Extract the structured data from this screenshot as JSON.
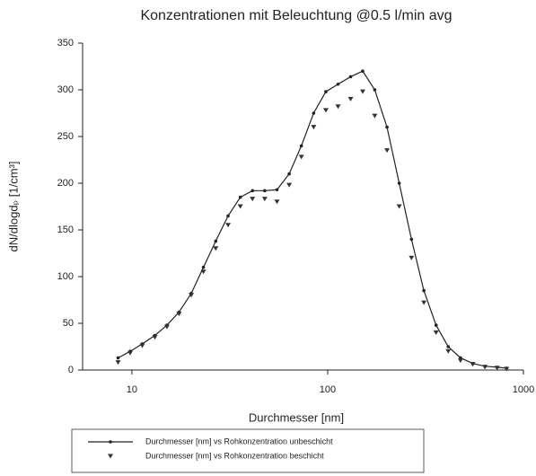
{
  "chart_data": {
    "type": "line",
    "title": "Konzentrationen mit Beleuchtung @0.5 l/min avg",
    "x_label": "Durchmesser [nm]",
    "y_label": "dN/dlogdₚ [1/cm³]",
    "x": [
      8.5,
      9.8,
      11.3,
      13.1,
      15.1,
      17.4,
      20.1,
      23.2,
      26.8,
      31.0,
      35.8,
      41.3,
      47.7,
      55.1,
      63.6,
      73.4,
      84.8,
      97.9,
      113,
      131,
      151,
      174,
      201,
      232,
      268,
      310,
      358,
      413,
      477,
      551,
      636,
      734,
      820
    ],
    "series": [
      {
        "name": "Durchmesser [nm] vs Rohkonzentration unbeschicht",
        "color": "#222222",
        "marker": "circle",
        "line": true,
        "values": [
          13,
          20,
          28,
          37,
          48,
          62,
          82,
          110,
          138,
          165,
          185,
          192,
          192,
          193,
          210,
          240,
          275,
          298,
          306,
          314,
          320,
          300,
          260,
          200,
          140,
          85,
          48,
          25,
          13,
          7,
          4,
          3,
          2
        ]
      },
      {
        "name": "Durchmesser [nm] vs Rohkonzentration beschicht",
        "color": "#333333",
        "marker": "triangle-down",
        "line": false,
        "values": [
          8,
          18,
          26,
          35,
          46,
          60,
          80,
          105,
          130,
          155,
          175,
          183,
          183,
          180,
          198,
          228,
          260,
          278,
          282,
          290,
          298,
          272,
          235,
          175,
          120,
          72,
          40,
          20,
          10,
          6,
          3,
          2,
          1
        ]
      }
    ],
    "xlim": [
      5.6,
      1000
    ],
    "xticks": [
      10,
      100,
      1000
    ],
    "x_log": true,
    "ylim": [
      0,
      350
    ],
    "yticks": [
      0,
      50,
      100,
      150,
      200,
      250,
      300,
      350
    ]
  }
}
